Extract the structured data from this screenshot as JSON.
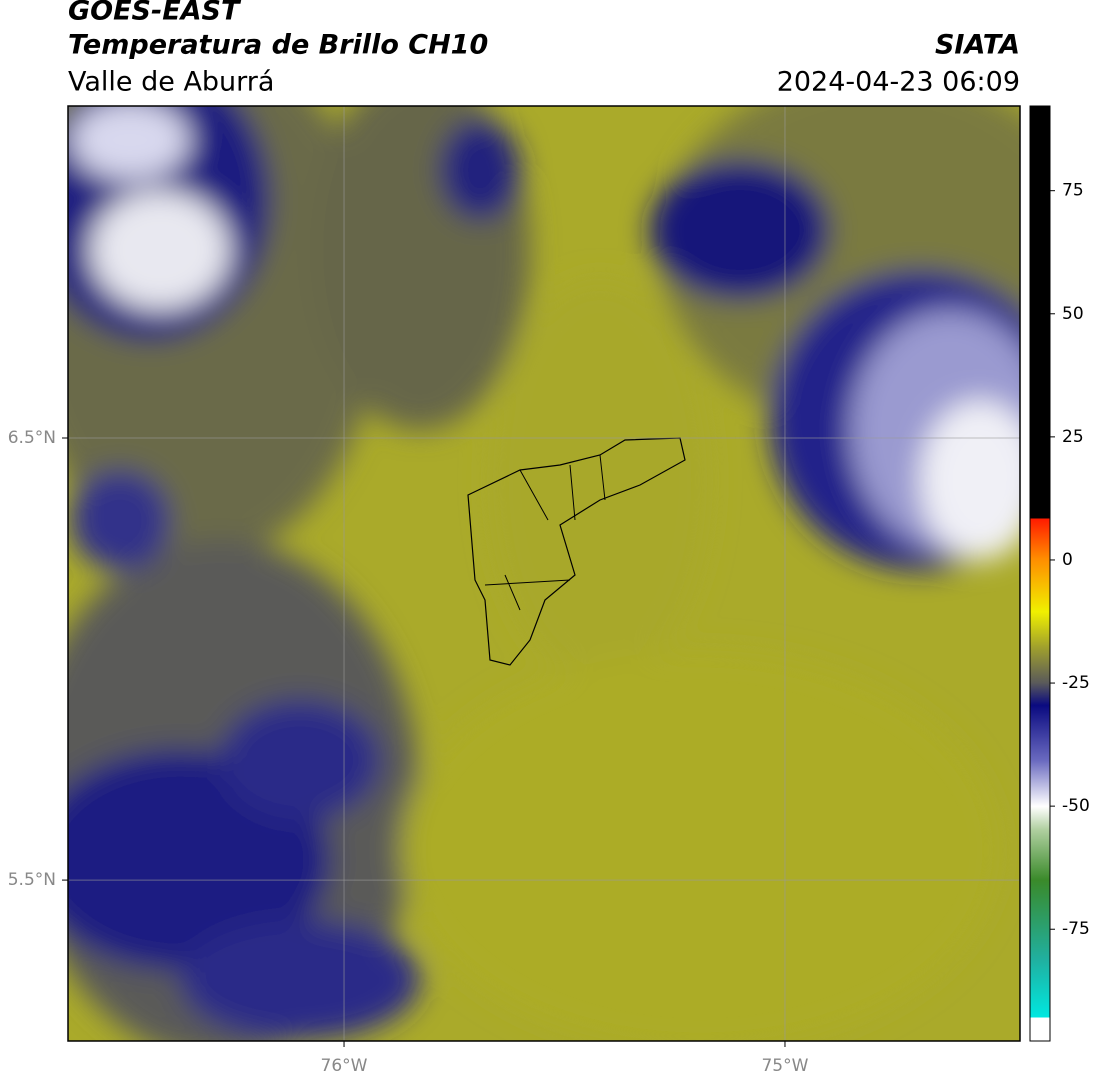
{
  "header": {
    "title": "GOES-EAST",
    "subtitle": "Temperatura de Brillo CH10",
    "region": "Valle de Aburrá",
    "source": "SIATA",
    "timestamp": "2024-04-23 06:09"
  },
  "map": {
    "lon_range": [
      -76.626,
      -74.467
    ],
    "lat_range": [
      5.136,
      7.251
    ],
    "lat_ticks": [
      {
        "value": 6.5,
        "label": "6.5°N"
      },
      {
        "value": 5.5,
        "label": "5.5°N"
      }
    ],
    "lon_ticks": [
      {
        "value": -76,
        "label": "76°W"
      },
      {
        "value": -75,
        "label": "75°W"
      }
    ]
  },
  "colorbar": {
    "range": [
      -97.7,
      92.2
    ],
    "ticks": [
      75,
      50,
      25,
      0,
      -25,
      -50,
      -75
    ]
  }
}
